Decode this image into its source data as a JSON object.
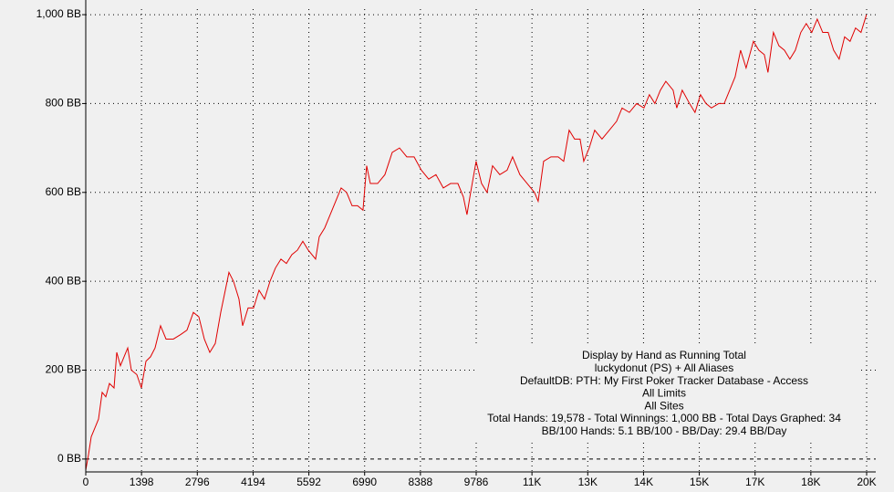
{
  "chart_data": {
    "type": "line",
    "x": [
      0,
      69,
      137,
      229,
      320,
      411,
      503,
      594,
      709,
      777,
      869,
      960,
      1052,
      1143,
      1280,
      1394,
      1509,
      1623,
      1737,
      1875,
      2012,
      2195,
      2377,
      2537,
      2697,
      2835,
      2972,
      3109,
      3246,
      3383,
      3498,
      3589,
      3703,
      3840,
      3932,
      4069,
      4206,
      4343,
      4481,
      4618,
      4755,
      4892,
      5029,
      5166,
      5304,
      5441,
      5578,
      5761,
      5852,
      5989,
      6126,
      6264,
      6401,
      6538,
      6675,
      6812,
      6949,
      7041,
      7132,
      7315,
      7498,
      7681,
      7864,
      8047,
      8230,
      8412,
      8595,
      8778,
      8961,
      9144,
      9327,
      9464,
      9555,
      9647,
      9784,
      9921,
      10058,
      10196,
      10378,
      10561,
      10698,
      10881,
      11064,
      11247,
      11339,
      11476,
      11659,
      11841,
      11979,
      12116,
      12253,
      12390,
      12482,
      12619,
      12756,
      12939,
      13122,
      13305,
      13442,
      13625,
      13808,
      13990,
      14127,
      14265,
      14402,
      14539,
      14722,
      14813,
      14950,
      15133,
      15270,
      15408,
      15545,
      15682,
      15865,
      16002,
      16139,
      16276,
      16413,
      16551,
      16734,
      16871,
      17008,
      17099,
      17236,
      17374,
      17511,
      17648,
      17785,
      17922,
      18059,
      18197,
      18334,
      18471,
      18608,
      18745,
      18883,
      19020,
      19157,
      19294,
      19431,
      19568
    ],
    "series": [
      {
        "color": "#e00000",
        "values": [
          -25,
          10,
          50,
          70,
          90,
          150,
          140,
          170,
          160,
          240,
          210,
          230,
          250,
          200,
          190,
          160,
          220,
          230,
          250,
          300,
          270,
          270,
          280,
          290,
          330,
          320,
          270,
          240,
          260,
          330,
          380,
          420,
          400,
          360,
          300,
          340,
          340,
          380,
          360,
          400,
          430,
          450,
          440,
          460,
          470,
          490,
          470,
          450,
          500,
          520,
          550,
          580,
          610,
          600,
          570,
          570,
          560,
          660,
          620,
          620,
          640,
          690,
          700,
          680,
          680,
          650,
          630,
          640,
          610,
          620,
          620,
          590,
          550,
          600,
          670,
          620,
          600,
          660,
          640,
          650,
          680,
          640,
          620,
          600,
          580,
          670,
          680,
          680,
          670,
          740,
          720,
          720,
          670,
          700,
          740,
          720,
          740,
          760,
          790,
          780,
          800,
          790,
          820,
          800,
          830,
          850,
          830,
          790,
          830,
          800,
          780,
          820,
          800,
          790,
          800,
          800,
          830,
          860,
          920,
          880,
          940,
          920,
          910,
          870,
          960,
          930,
          920,
          900,
          920,
          960,
          980,
          960,
          990,
          960,
          960,
          920,
          900,
          950,
          940,
          970,
          960,
          1000
        ]
      }
    ],
    "xlim": [
      0,
      19572
    ],
    "xticks": [
      0,
      1398,
      2796,
      4194,
      5592,
      6990,
      8388,
      9786,
      {
        "value": 11184,
        "label": "11K"
      },
      {
        "value": 12582,
        "label": "13K"
      },
      {
        "value": 13980,
        "label": "14K"
      },
      {
        "value": 15378,
        "label": "15K"
      },
      {
        "value": 16776,
        "label": "17K"
      },
      {
        "value": 18174,
        "label": "18K"
      },
      {
        "value": 19572,
        "label": "20K"
      }
    ],
    "ylim": [
      -29,
      1033
    ],
    "yticks": [
      {
        "value": 0,
        "label": "0 BB"
      },
      {
        "value": 200,
        "label": "200 BB"
      },
      {
        "value": 400,
        "label": "400 BB"
      },
      {
        "value": 600,
        "label": "600 BB"
      },
      {
        "value": 800,
        "label": "800 BB"
      },
      {
        "value": 1000,
        "label": "1,000 BB"
      }
    ],
    "grid": true,
    "annotations": [
      "Display by Hand as Running Total",
      "luckydonut (PS) + All Aliases",
      "DefaultDB: PTH: My First Poker Tracker Database - Access",
      "All Limits",
      "All Sites",
      "Total Hands: 19,578 - Total Winnings: 1,000 BB - Total Days Graphed: 34",
      "BB/100 Hands: 5.1 BB/100 - BB/Day: 29.4 BB/Day"
    ]
  }
}
